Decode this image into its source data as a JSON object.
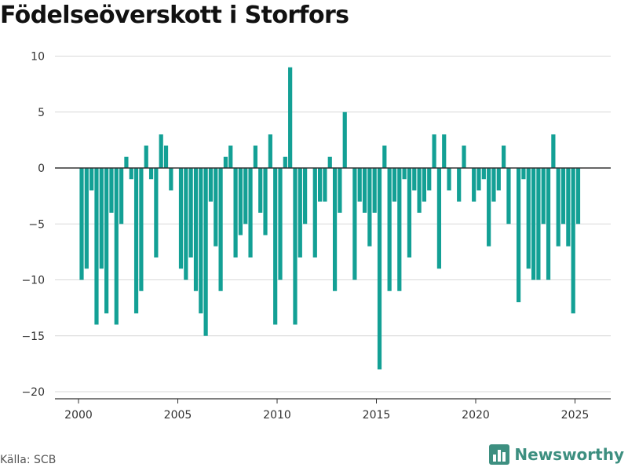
{
  "title": "Födelseöverskott i Storfors",
  "source": "Källa: SCB",
  "brand": {
    "name": "Newsworthy",
    "icon": "bar-chart-logo-icon"
  },
  "colors": {
    "bar": "#13a095",
    "grid": "#d9d9d9",
    "zero_line": "#333333",
    "brand": "#3d8f80"
  },
  "chart_data": {
    "type": "bar",
    "title": "Födelseöverskott i Storfors",
    "xlabel": "",
    "ylabel": "",
    "x_ticks": [
      "2000",
      "2005",
      "2010",
      "2015",
      "2020",
      "2025"
    ],
    "y_ticks": [
      "10",
      "5",
      "0",
      "−5",
      "−10",
      "−15",
      "−20"
    ],
    "ylim": [
      -21,
      11
    ],
    "grid": true,
    "period": "quarterly, 2000 Q1 – 2025 Q1",
    "values": [
      -10,
      -9,
      -2,
      -14,
      -9,
      -13,
      -4,
      -14,
      -5,
      1,
      -1,
      -13,
      -11,
      2,
      -1,
      -8,
      3,
      2,
      -2,
      0,
      -9,
      -10,
      -8,
      -11,
      -13,
      -15,
      -3,
      -7,
      -11,
      1,
      2,
      -8,
      -6,
      -5,
      -8,
      2,
      -4,
      -6,
      3,
      -14,
      -10,
      1,
      9,
      -14,
      -8,
      -5,
      0,
      -8,
      -3,
      -3,
      1,
      -11,
      -4,
      5,
      0,
      -10,
      -3,
      -4,
      -7,
      -4,
      -18,
      2,
      -11,
      -3,
      -11,
      -1,
      -8,
      -2,
      -4,
      -3,
      -2,
      3,
      -9,
      3,
      -2,
      0,
      -3,
      2,
      0,
      -3,
      -2,
      -1,
      -7,
      -3,
      -2,
      2,
      -5,
      0,
      -12,
      -1,
      -9,
      -10,
      -10,
      -5,
      -10,
      3,
      -7,
      -5,
      -7,
      -13,
      -5
    ]
  }
}
